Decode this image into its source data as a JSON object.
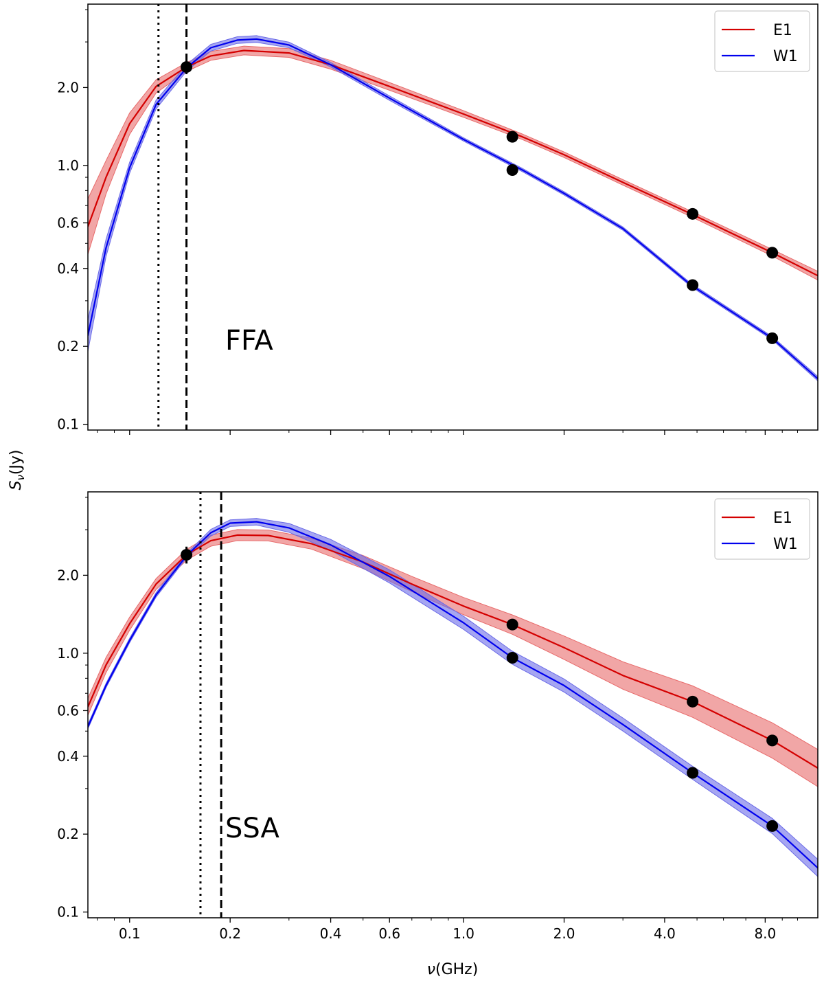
{
  "colors": {
    "E1": "#d40000",
    "W1": "#0000ee",
    "E1_band": "#e86a6a",
    "W1_band": "#6a6ae8",
    "points": "#000000"
  },
  "chart_data": [
    {
      "type": "line",
      "panel_label": "FFA",
      "xscale": "log",
      "yscale": "log",
      "xlim": [
        0.075,
        11.5
      ],
      "ylim": [
        0.095,
        4.2
      ],
      "xlabel": "ν(GHz)",
      "ylabel": "Sν(Jy)",
      "xticks": [
        0.1,
        0.2,
        0.4,
        0.6,
        1.0,
        2.0,
        4.0,
        8.0
      ],
      "xtick_labels": [
        "0.1",
        "0.2",
        "0.4",
        "0.6",
        "1.0",
        "2.0",
        "4.0",
        "8.0"
      ],
      "yticks": [
        0.1,
        0.2,
        0.4,
        0.6,
        1.0,
        2.0
      ],
      "ytick_labels": [
        "0.1",
        "0.2",
        "0.4",
        "0.6",
        "1.0",
        "2.0"
      ],
      "vlines": [
        {
          "x": 0.122,
          "style": "dotted"
        },
        {
          "x": 0.148,
          "style": "dashed"
        }
      ],
      "legend": {
        "location": "upper-right",
        "entries": [
          "E1",
          "W1"
        ]
      },
      "series": [
        {
          "name": "E1",
          "x": [
            0.075,
            0.085,
            0.1,
            0.12,
            0.148,
            0.175,
            0.22,
            0.3,
            0.4,
            0.6,
            1.0,
            1.5,
            2.0,
            3.0,
            4.8,
            8.4,
            11.5
          ],
          "y": [
            0.58,
            0.9,
            1.45,
            2.02,
            2.4,
            2.65,
            2.78,
            2.72,
            2.45,
            2.02,
            1.58,
            1.29,
            1.1,
            0.86,
            0.65,
            0.46,
            0.375
          ],
          "band_frac": [
            0.28,
            0.16,
            0.1,
            0.06,
            0.04,
            0.04,
            0.04,
            0.04,
            0.04,
            0.035,
            0.03,
            0.025,
            0.025,
            0.025,
            0.025,
            0.03,
            0.04
          ],
          "points": {
            "x": [
              0.148,
              1.4,
              4.85,
              8.4
            ],
            "y": [
              2.4,
              1.29,
              0.65,
              0.46
            ],
            "yerr": [
              0.12,
              0.0,
              0.0,
              0.0
            ]
          }
        },
        {
          "name": "W1",
          "x": [
            0.075,
            0.085,
            0.1,
            0.12,
            0.148,
            0.175,
            0.21,
            0.24,
            0.3,
            0.4,
            0.6,
            1.0,
            1.5,
            2.0,
            3.0,
            4.8,
            8.4,
            11.5
          ],
          "y": [
            0.22,
            0.48,
            0.98,
            1.72,
            2.38,
            2.85,
            3.05,
            3.08,
            2.92,
            2.45,
            1.82,
            1.26,
            0.96,
            0.78,
            0.57,
            0.345,
            0.215,
            0.15
          ],
          "band_frac": [
            0.15,
            0.08,
            0.05,
            0.04,
            0.03,
            0.03,
            0.03,
            0.03,
            0.025,
            0.02,
            0.02,
            0.015,
            0.015,
            0.015,
            0.015,
            0.015,
            0.015,
            0.02
          ],
          "points": {
            "x": [
              1.4,
              4.85,
              8.4
            ],
            "y": [
              0.96,
              0.345,
              0.215
            ],
            "yerr": [
              0.0,
              0.0,
              0.0
            ]
          }
        }
      ]
    },
    {
      "type": "line",
      "panel_label": "SSA",
      "xscale": "log",
      "yscale": "log",
      "xlim": [
        0.075,
        11.5
      ],
      "ylim": [
        0.095,
        4.2
      ],
      "xlabel": "ν(GHz)",
      "ylabel": "Sν(Jy)",
      "xticks": [
        0.1,
        0.2,
        0.4,
        0.6,
        1.0,
        2.0,
        4.0,
        8.0
      ],
      "xtick_labels": [
        "0.1",
        "0.2",
        "0.4",
        "0.6",
        "1.0",
        "2.0",
        "4.0",
        "8.0"
      ],
      "yticks": [
        0.1,
        0.2,
        0.4,
        0.6,
        1.0,
        2.0
      ],
      "ytick_labels": [
        "0.1",
        "0.2",
        "0.4",
        "0.6",
        "1.0",
        "2.0"
      ],
      "vlines": [
        {
          "x": 0.163,
          "style": "dotted"
        },
        {
          "x": 0.188,
          "style": "dashed"
        }
      ],
      "legend": {
        "location": "upper-right",
        "entries": [
          "E1",
          "W1"
        ]
      },
      "series": [
        {
          "name": "E1",
          "x": [
            0.075,
            0.085,
            0.1,
            0.12,
            0.148,
            0.175,
            0.21,
            0.26,
            0.35,
            0.5,
            0.7,
            1.0,
            1.4,
            2.0,
            3.0,
            4.85,
            8.4,
            11.5
          ],
          "y": [
            0.62,
            0.9,
            1.3,
            1.85,
            2.4,
            2.72,
            2.86,
            2.85,
            2.65,
            2.25,
            1.85,
            1.52,
            1.29,
            1.05,
            0.82,
            0.65,
            0.46,
            0.36
          ],
          "band_frac": [
            0.08,
            0.07,
            0.06,
            0.05,
            0.05,
            0.05,
            0.05,
            0.05,
            0.05,
            0.06,
            0.07,
            0.08,
            0.09,
            0.11,
            0.13,
            0.15,
            0.17,
            0.18
          ],
          "points": {
            "x": [
              0.148,
              1.4,
              4.85,
              8.4
            ],
            "y": [
              2.4,
              1.29,
              0.65,
              0.46
            ],
            "yerr": [
              0.18,
              0.0,
              0.0,
              0.0
            ]
          }
        },
        {
          "name": "W1",
          "x": [
            0.075,
            0.085,
            0.1,
            0.12,
            0.148,
            0.175,
            0.2,
            0.24,
            0.3,
            0.4,
            0.6,
            1.0,
            1.4,
            2.0,
            3.0,
            4.85,
            8.4,
            11.5
          ],
          "y": [
            0.52,
            0.75,
            1.12,
            1.68,
            2.38,
            2.92,
            3.18,
            3.22,
            3.05,
            2.62,
            1.98,
            1.31,
            0.96,
            0.75,
            0.53,
            0.345,
            0.215,
            0.148
          ],
          "band_frac": [
            0.02,
            0.02,
            0.02,
            0.02,
            0.02,
            0.03,
            0.03,
            0.03,
            0.04,
            0.05,
            0.06,
            0.06,
            0.06,
            0.06,
            0.06,
            0.06,
            0.07,
            0.08
          ],
          "points": {
            "x": [
              1.4,
              4.85,
              8.4
            ],
            "y": [
              0.96,
              0.345,
              0.215
            ],
            "yerr": [
              0.0,
              0.0,
              0.0
            ]
          }
        }
      ]
    }
  ]
}
